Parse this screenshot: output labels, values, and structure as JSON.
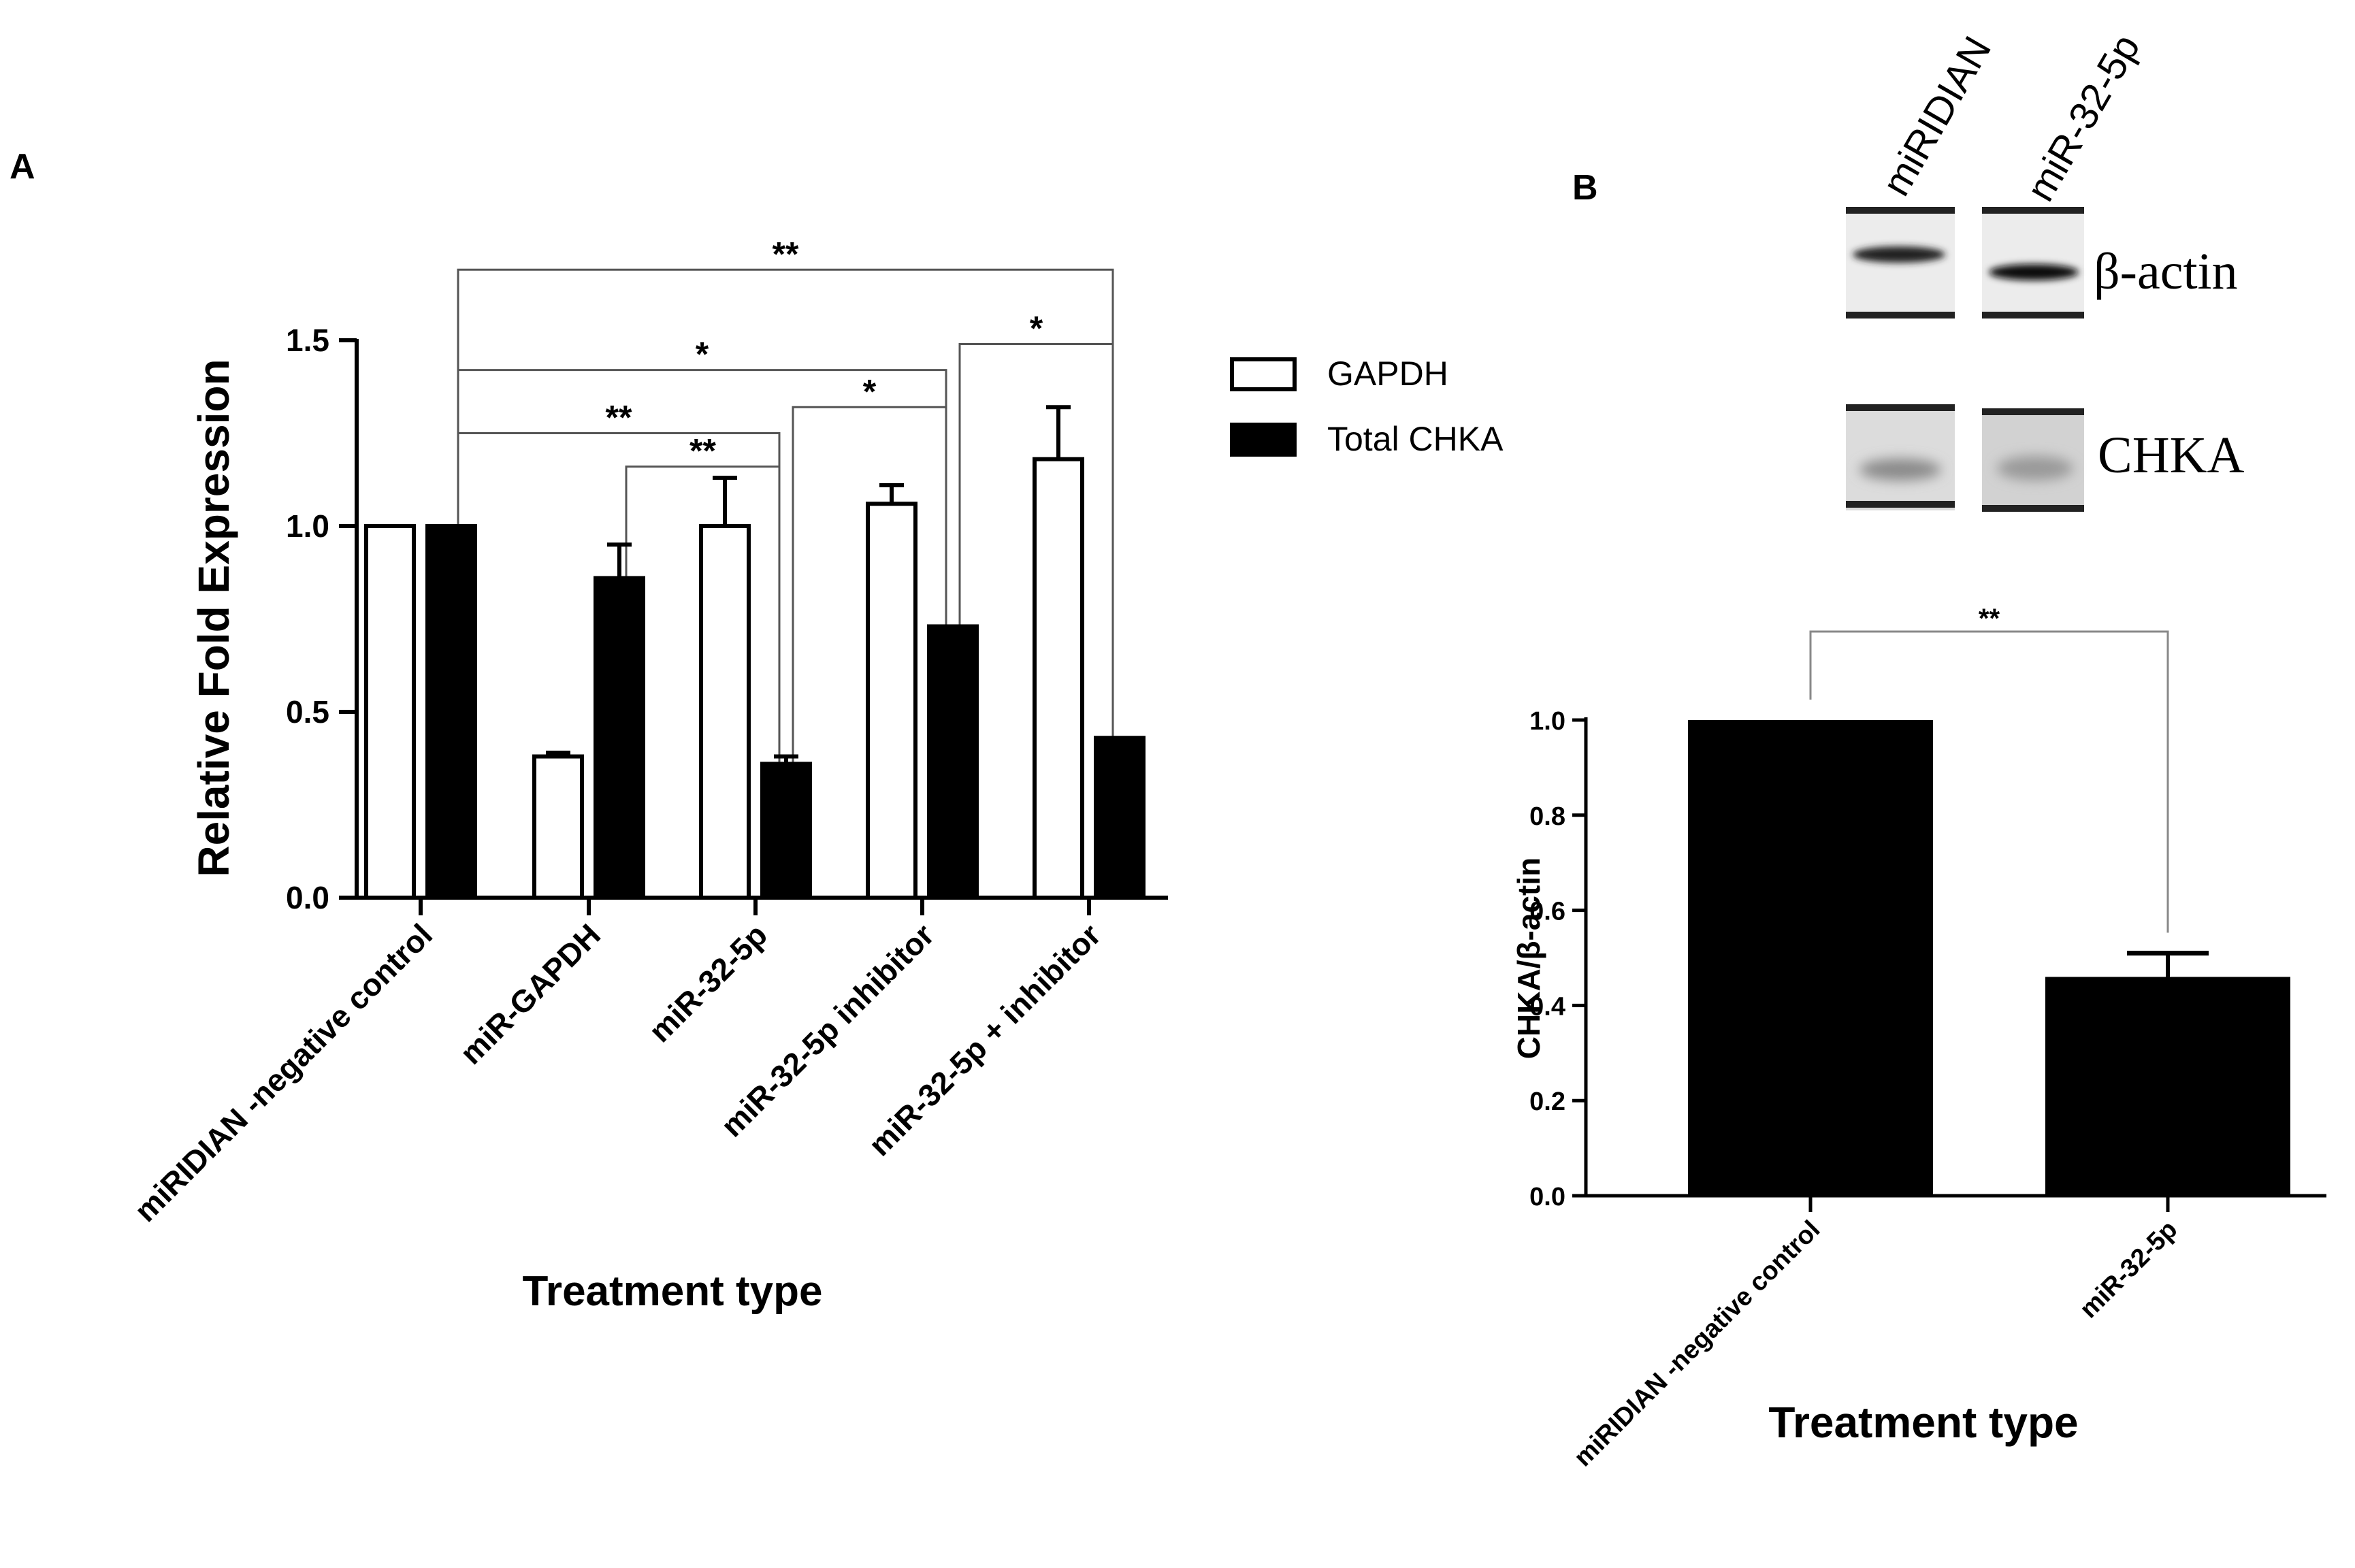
{
  "panels": {
    "a_label": "A",
    "b_label": "B"
  },
  "chart_data": [
    {
      "type": "bar",
      "ylabel": "Relative Fold Expression",
      "xlabel": "Treatment type",
      "ylim": [
        0,
        1.5
      ],
      "yticks": [
        "0.0",
        "0.5",
        "1.0",
        "1.5"
      ],
      "categories": [
        "miRIDIAN -negative control",
        "miR-GAPDH",
        "miR-32-5p",
        "miR-32-5p inhibitor",
        "miR-32-5p + inhibitor"
      ],
      "series": [
        {
          "name": "GAPDH",
          "fill": "#ffffff",
          "values": [
            1.0,
            0.38,
            1.0,
            1.06,
            1.18
          ],
          "errors": [
            0.0,
            0.01,
            0.13,
            0.05,
            0.14
          ]
        },
        {
          "name": "Total CHKA",
          "fill": "#000000",
          "values": [
            1.0,
            0.86,
            0.36,
            0.73,
            0.43
          ],
          "errors": [
            0.0,
            0.09,
            0.02,
            0.0,
            0.0
          ]
        }
      ],
      "legend_position": "right",
      "significance": [
        {
          "label": "**",
          "from": [
            0,
            1
          ],
          "to": [
            4,
            1
          ],
          "y": 1.69
        },
        {
          "label": "*",
          "from": [
            0,
            1
          ],
          "to": [
            3,
            1
          ],
          "y": 1.42
        },
        {
          "label": "*",
          "from": [
            3,
            1
          ],
          "to": [
            4,
            1
          ],
          "y": 1.49
        },
        {
          "label": "**",
          "from": [
            0,
            1
          ],
          "to": [
            2,
            1
          ],
          "y": 1.25
        },
        {
          "label": "*",
          "from": [
            2,
            1
          ],
          "to": [
            3,
            1
          ],
          "y": 1.32
        },
        {
          "label": "**",
          "from": [
            1,
            1
          ],
          "to": [
            2,
            1
          ],
          "y": 1.16
        }
      ]
    },
    {
      "type": "bar",
      "ylabel": "CHKA/β-actin",
      "xlabel": "Treatment type",
      "ylim": [
        0,
        1.0
      ],
      "yticks": [
        "0.0",
        "0.2",
        "0.4",
        "0.6",
        "0.8",
        "1.0"
      ],
      "categories": [
        "miRIDIAN -negative control",
        "miR-32-5p"
      ],
      "values": [
        1.0,
        0.46
      ],
      "errors": [
        0.0,
        0.05
      ],
      "significance": [
        {
          "label": "**",
          "from": 0,
          "to": 1
        }
      ]
    }
  ],
  "blot": {
    "lane_labels": [
      "miRIDIAN",
      "miR-32-5p"
    ],
    "band_labels": [
      "β-actin",
      "CHKA"
    ]
  }
}
